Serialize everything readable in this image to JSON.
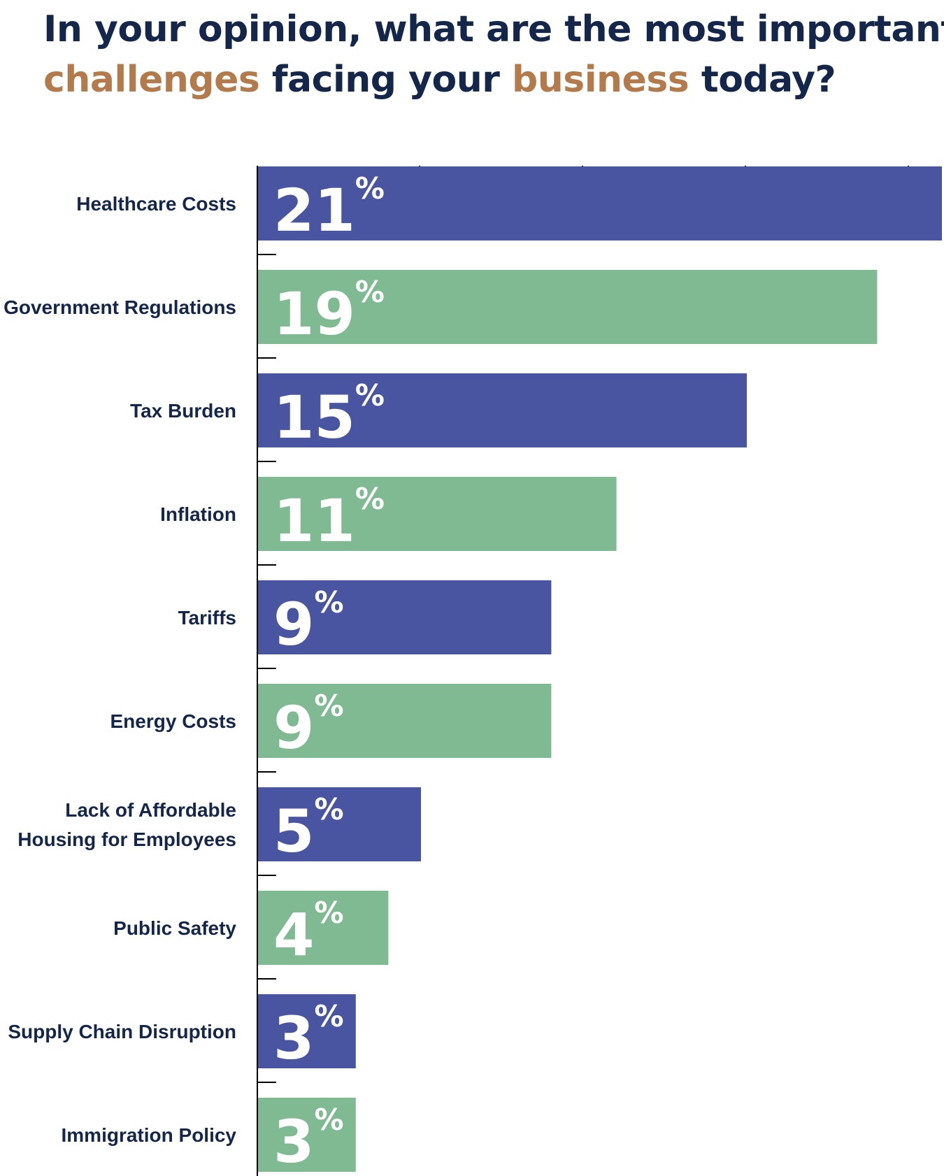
{
  "title": {
    "line1": "In your opinion, what are the most important",
    "line2_part1": "challenges",
    "line2_part2": " facing your ",
    "line2_part3": "business",
    "line2_part4": " today?"
  },
  "colors": {
    "title_dark": "#14264a",
    "title_accent": "#b37a4c",
    "bar_blue": "#4a55a2",
    "bar_green": "#7fba92",
    "axis": "#000000"
  },
  "chart_data": {
    "type": "bar",
    "orientation": "horizontal",
    "title": "In your opinion, what are the most important challenges facing your business today?",
    "categories": [
      "Healthcare Costs",
      "Government Regulations",
      "Tax Burden",
      "Inflation",
      "Tariffs",
      "Energy Costs",
      "Lack of Affordable Housing for Employees",
      "Public Safety",
      "Supply Chain Disruption",
      "Immigration Policy"
    ],
    "label_lines": [
      [
        "Healthcare Costs"
      ],
      [
        "Government Regulations"
      ],
      [
        "Tax Burden"
      ],
      [
        "Inflation"
      ],
      [
        "Tariffs"
      ],
      [
        "Energy Costs"
      ],
      [
        "Lack of Affordable",
        "Housing for Employees"
      ],
      [
        "Public Safety"
      ],
      [
        "Supply Chain Disruption"
      ],
      [
        "Immigration Policy"
      ]
    ],
    "values": [
      21,
      19,
      15,
      11,
      9,
      9,
      5,
      4,
      3,
      3
    ],
    "value_labels": [
      "21",
      "19",
      "15",
      "11",
      "9",
      "9",
      "5",
      "4",
      "3",
      "3"
    ],
    "unit": "%",
    "xlim": [
      0,
      20
    ],
    "xlabel": "",
    "ylabel": "",
    "grid": false
  }
}
